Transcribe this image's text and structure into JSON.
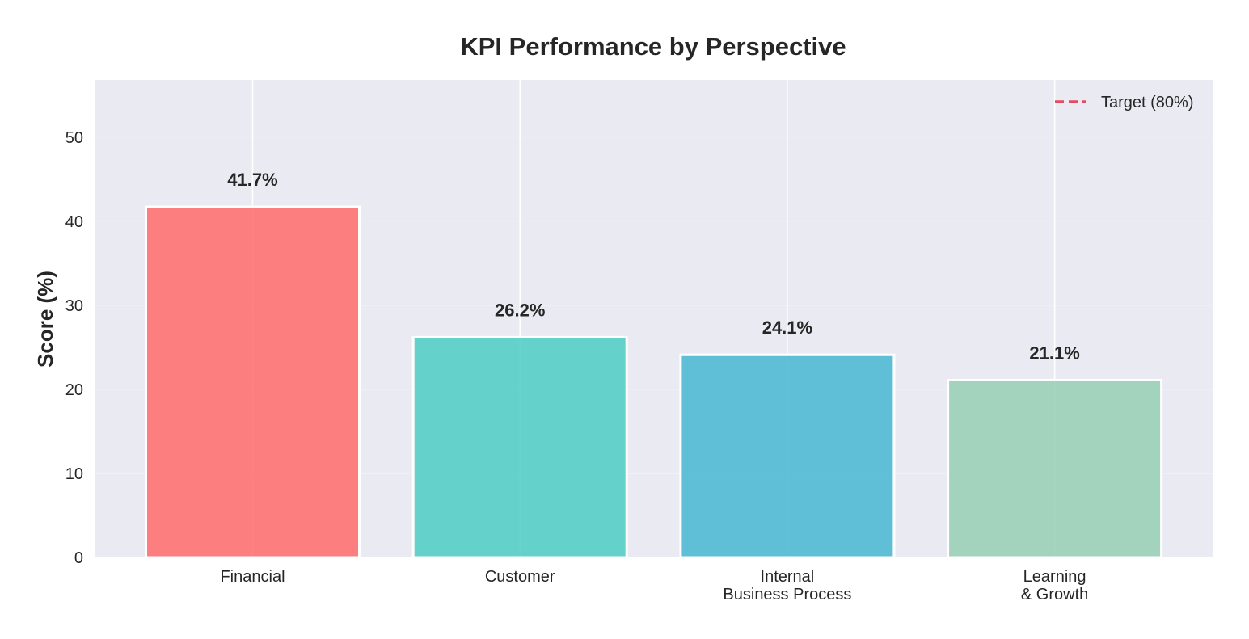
{
  "chart_data": {
    "type": "bar",
    "title": "KPI Performance by Perspective",
    "xlabel": "",
    "ylabel": "Score (%)",
    "ylim": [
      0,
      56.8
    ],
    "yticks": [
      0,
      10,
      20,
      30,
      40,
      50
    ],
    "grid": true,
    "categories": [
      [
        "Financial"
      ],
      [
        "Customer"
      ],
      [
        "Internal",
        "Business Process"
      ],
      [
        "Learning",
        "& Growth"
      ]
    ],
    "values": [
      41.7,
      26.2,
      24.1,
      21.1
    ],
    "value_labels": [
      "41.7%",
      "26.2%",
      "24.1%",
      "21.1%"
    ],
    "colors": [
      "#ff6b6b",
      "#4ecdc4",
      "#45b7d1",
      "#96ceb4"
    ],
    "background": "#eaeaf2",
    "target": {
      "value": 80,
      "label": "Target (80%)",
      "color": "#e84a5f",
      "style": "dashed"
    },
    "legend_position": "top-right"
  }
}
